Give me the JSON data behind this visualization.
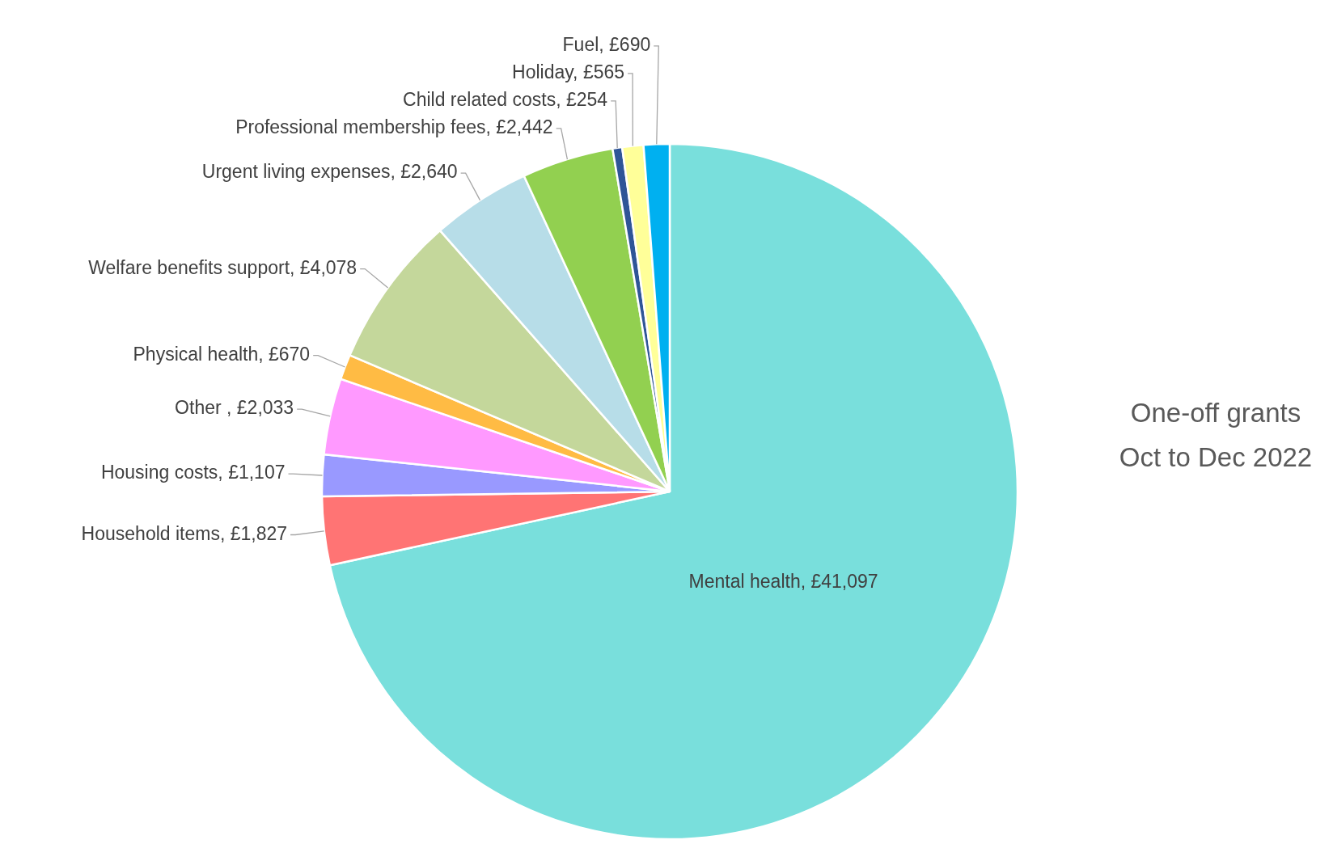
{
  "chart_data": {
    "type": "pie",
    "title": "One-off grants\nOct to Dec 2022",
    "categories": [
      "Mental health",
      "Household items",
      "Housing costs",
      "Other ",
      "Physical health",
      "Welfare benefits support",
      "Urgent living expenses",
      "Professional membership fees",
      "Child related costs",
      "Holiday",
      "Fuel"
    ],
    "values": [
      41097,
      1827,
      1107,
      2033,
      670,
      4078,
      2640,
      2442,
      254,
      565,
      690
    ],
    "value_labels": [
      "£41,097",
      "£1,827",
      "£1,107",
      "£2,033",
      "£670",
      "£4,078",
      "£2,640",
      "£2,442",
      "£254",
      "£565",
      "£690"
    ],
    "colors": [
      "#79dfdc",
      "#ff7474",
      "#9999ff",
      "#ff99ff",
      "#ffbb44",
      "#c4d79b",
      "#b7dde8",
      "#92d050",
      "#2f5597",
      "#ffff99",
      "#00b0f0"
    ]
  }
}
